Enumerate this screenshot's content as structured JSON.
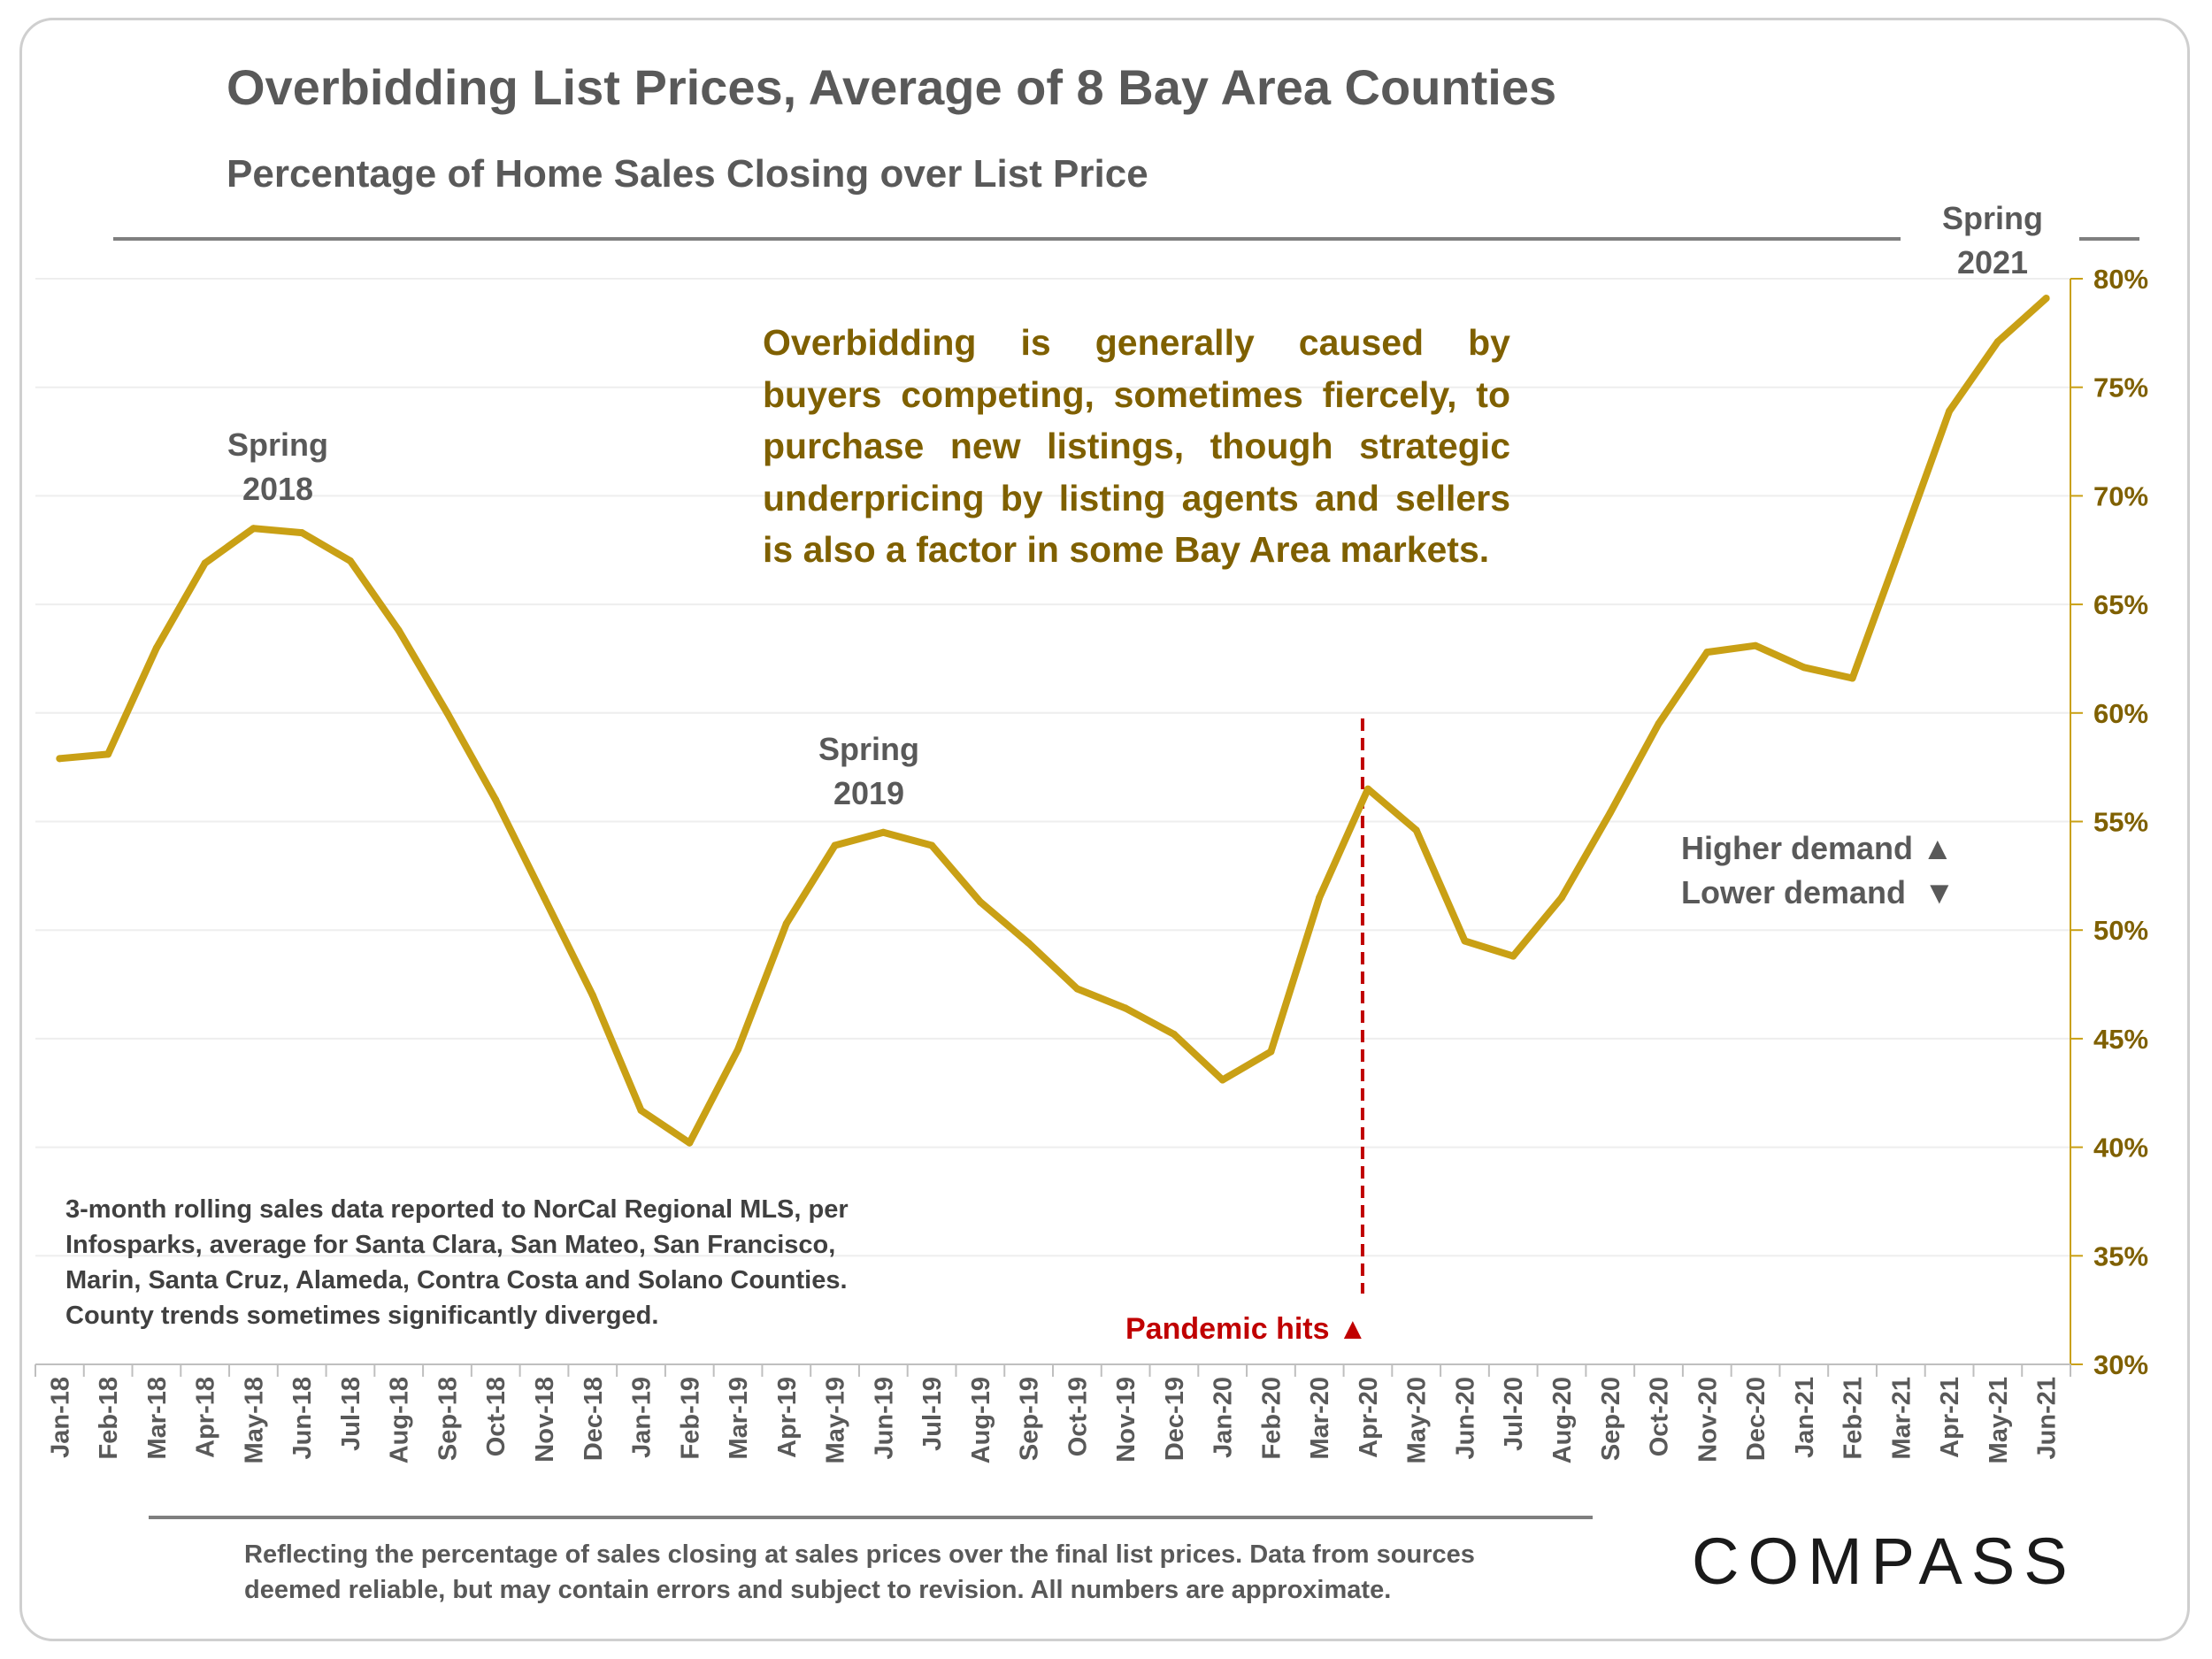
{
  "title": "Overbidding List Prices, Average of 8 Bay Area Counties",
  "subtitle": "Percentage of  Home Sales Closing over List Price",
  "annotation": [
    "Overbidding is generally caused by",
    "buyers competing, sometimes fiercely, to",
    "purchase new listings, though strategic",
    "underpricing by listing agents and sellers",
    "is also a factor in some Bay Area markets."
  ],
  "spring_labels": {
    "s2018": [
      "Spring",
      "2018"
    ],
    "s2019": [
      "Spring",
      "2019"
    ],
    "s2021": [
      "Spring",
      "2021"
    ]
  },
  "notes": "3-month rolling sales data reported to NorCal Regional MLS, per Infosparks, average for Santa Clara, San Mateo, San Francisco, Marin, Santa Cruz, Alameda, Contra Costa and Solano Counties. County trends sometimes significantly diverged.",
  "demand": {
    "higher": "Higher demand ▲",
    "lower": "Lower demand  ▼"
  },
  "pandemic_label": "Pandemic hits ▲",
  "footnote": "Reflecting the percentage of sales closing at sales prices over the final list prices. Data from sources deemed reliable, but may contain errors and subject to revision. All numbers are approximate.",
  "logo": "COMPASS",
  "colors": {
    "line": "#c9a015",
    "axis_labels": "#7f6000",
    "pandemic": "#c00000",
    "text_gray": "#595959"
  },
  "chart_data": {
    "type": "line",
    "title": "Overbidding List Prices, Average of 8 Bay Area Counties",
    "subtitle": "Percentage of  Home Sales Closing over List Price",
    "xlabel": "",
    "ylabel": "",
    "y_axis_position": "right",
    "ylim": [
      30,
      80
    ],
    "yticks": [
      30,
      35,
      40,
      45,
      50,
      55,
      60,
      65,
      70,
      75,
      80
    ],
    "ytick_labels": [
      "30%",
      "35%",
      "40%",
      "45%",
      "50%",
      "55%",
      "60%",
      "65%",
      "70%",
      "75%",
      "80%"
    ],
    "grid": true,
    "categories": [
      "Jan-18",
      "Feb-18",
      "Mar-18",
      "Apr-18",
      "May-18",
      "Jun-18",
      "Jul-18",
      "Aug-18",
      "Sep-18",
      "Oct-18",
      "Nov-18",
      "Dec-18",
      "Jan-19",
      "Feb-19",
      "Mar-19",
      "Apr-19",
      "May-19",
      "Jun-19",
      "Jul-19",
      "Aug-19",
      "Sep-19",
      "Oct-19",
      "Nov-19",
      "Dec-19",
      "Jan-20",
      "Feb-20",
      "Mar-20",
      "Apr-20",
      "May-20",
      "Jun-20",
      "Jul-20",
      "Aug-20",
      "Sep-20",
      "Oct-20",
      "Nov-20",
      "Dec-20",
      "Jan-21",
      "Feb-21",
      "Mar-21",
      "Apr-21",
      "May-21",
      "Jun-21"
    ],
    "series": [
      {
        "name": "Percentage of Home Sales Closing over List Price",
        "values": [
          57.9,
          58.1,
          63.0,
          66.9,
          68.5,
          68.3,
          67.0,
          63.8,
          60.0,
          56.0,
          51.5,
          47.0,
          41.7,
          40.2,
          44.5,
          50.3,
          53.9,
          54.5,
          53.9,
          51.3,
          49.4,
          47.3,
          46.4,
          45.2,
          43.1,
          44.4,
          51.5,
          56.5,
          54.6,
          49.5,
          48.8,
          51.5,
          55.4,
          59.5,
          62.8,
          63.1,
          62.1,
          61.6,
          67.7,
          73.9,
          77.1,
          79.1
        ]
      }
    ],
    "event_marker": {
      "category": "Apr-20",
      "label": "Pandemic hits ▲"
    }
  }
}
